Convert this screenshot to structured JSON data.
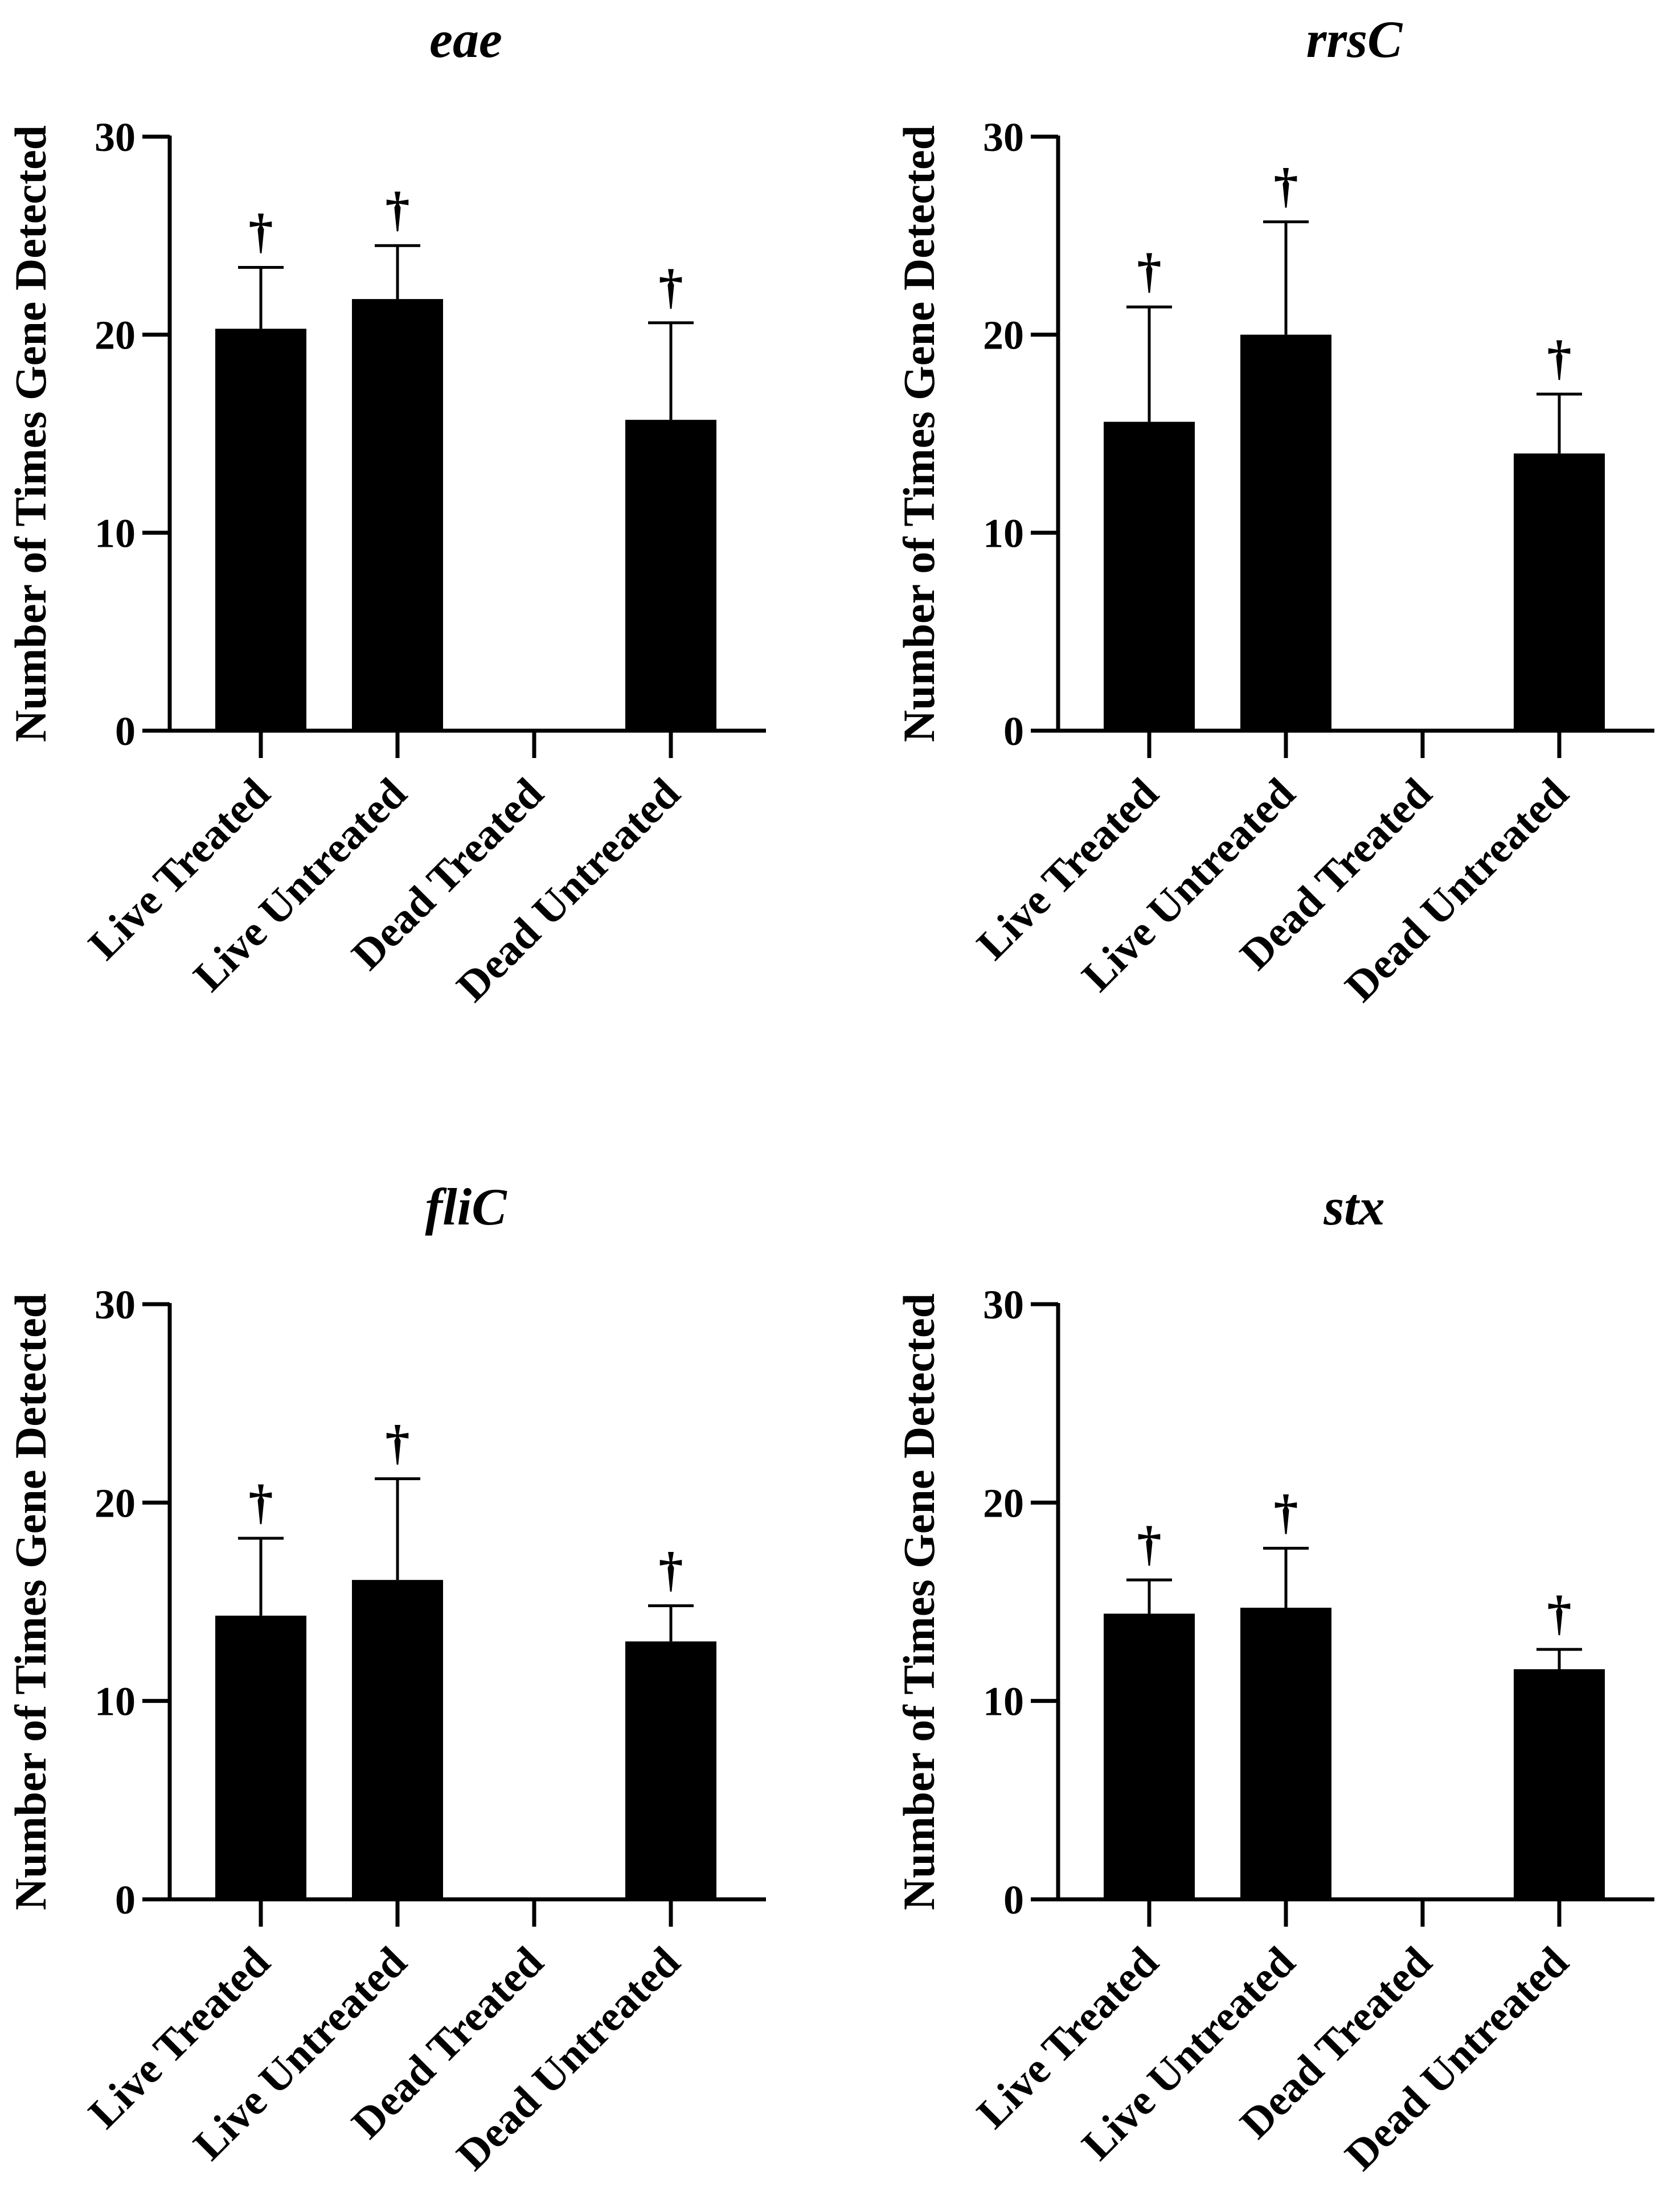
{
  "chart_data": [
    {
      "type": "bar",
      "title": "eae",
      "ylabel": "Number of Times Gene Detected",
      "xlabel": "",
      "ylim": [
        0,
        30
      ],
      "yticks": [
        0,
        10,
        20,
        30
      ],
      "categories": [
        "Live Treated",
        "Live Untreated",
        "Dead Treated",
        "Dead Untreated"
      ],
      "values": [
        20.3,
        21.8,
        0,
        15.7
      ],
      "errors": [
        3.1,
        2.7,
        0,
        4.9
      ],
      "annotations": [
        "†",
        "†",
        "",
        "†"
      ]
    },
    {
      "type": "bar",
      "title": "rrsC",
      "ylabel": "Number of Times Gene Detected",
      "xlabel": "",
      "ylim": [
        0,
        30
      ],
      "yticks": [
        0,
        10,
        20,
        30
      ],
      "categories": [
        "Live Treated",
        "Live Untreated",
        "Dead Treated",
        "Dead Untreated"
      ],
      "values": [
        15.6,
        20.0,
        0,
        14.0
      ],
      "errors": [
        5.8,
        5.7,
        0,
        3.0
      ],
      "annotations": [
        "†",
        "†",
        "",
        "†"
      ]
    },
    {
      "type": "bar",
      "title": "fliC",
      "ylabel": "Number of Times Gene Detected",
      "xlabel": "",
      "ylim": [
        0,
        30
      ],
      "yticks": [
        0,
        10,
        20,
        30
      ],
      "categories": [
        "Live Treated",
        "Live Untreated",
        "Dead Treated",
        "Dead Untreated"
      ],
      "values": [
        14.3,
        16.1,
        0,
        13.0
      ],
      "errors": [
        3.9,
        5.1,
        0,
        1.8
      ],
      "annotations": [
        "†",
        "†",
        "",
        "†"
      ]
    },
    {
      "type": "bar",
      "title": "stx",
      "ylabel": "Number of Times Gene Detected",
      "xlabel": "",
      "ylim": [
        0,
        30
      ],
      "yticks": [
        0,
        10,
        20,
        30
      ],
      "categories": [
        "Live Treated",
        "Live Untreated",
        "Dead Treated",
        "Dead Untreated"
      ],
      "values": [
        14.4,
        14.7,
        0,
        11.6
      ],
      "errors": [
        1.7,
        3.0,
        0,
        1.0
      ],
      "annotations": [
        "†",
        "†",
        "",
        "†"
      ]
    }
  ]
}
